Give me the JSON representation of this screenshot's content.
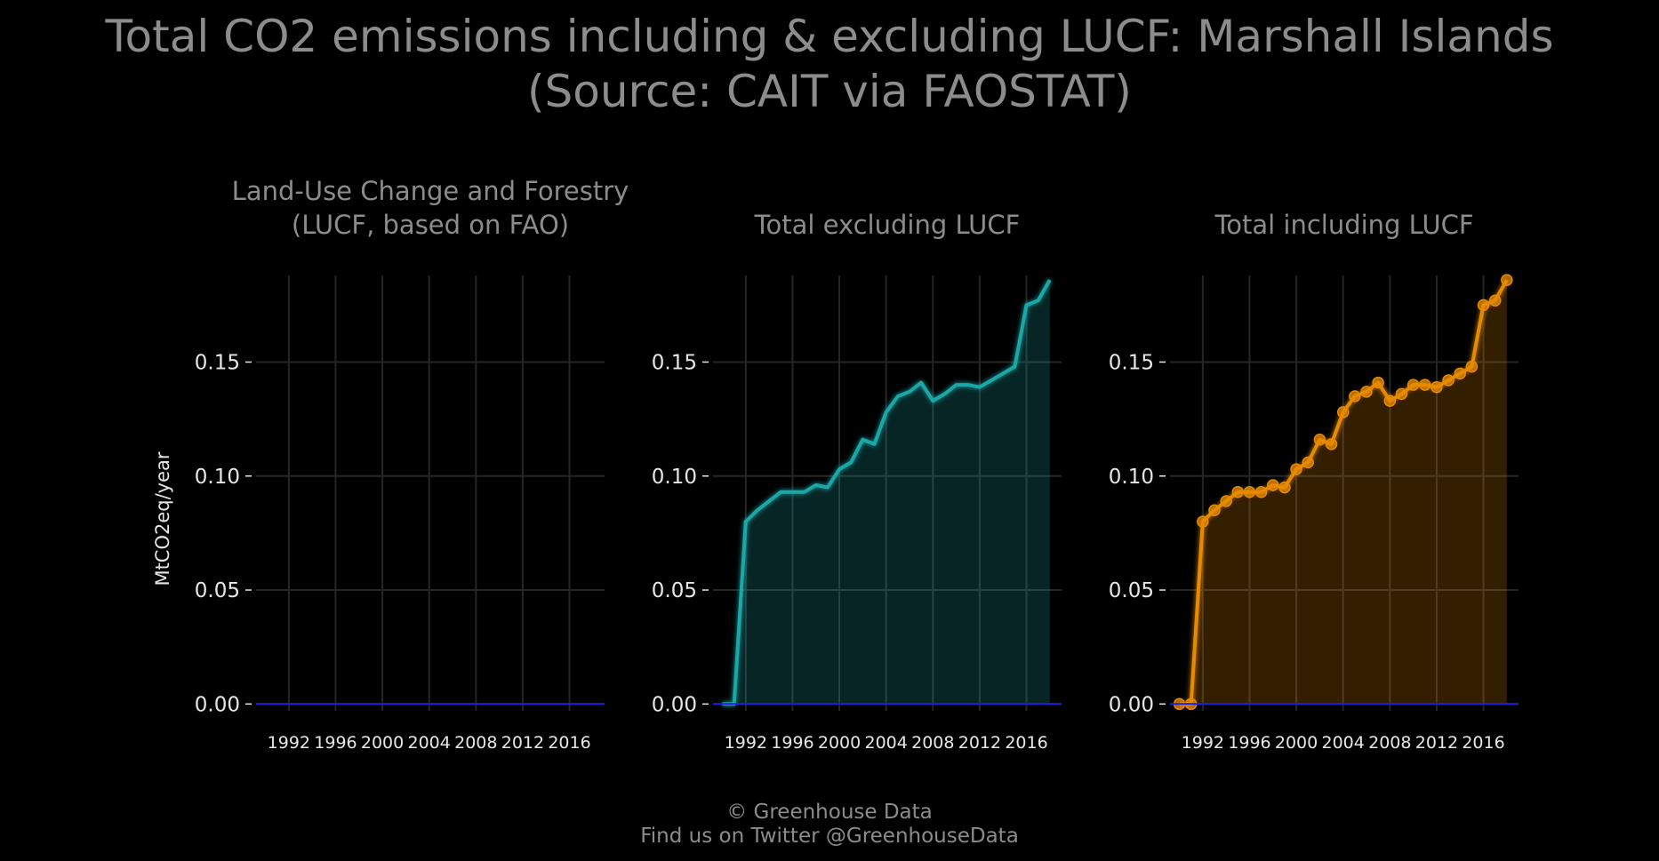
{
  "title_line1": "Total CO2 emissions including & excluding LUCF: Marshall Islands",
  "title_line2": "(Source: CAIT via FAOSTAT)",
  "ylabel": "MtCO2eq/year",
  "footer_line1": "© Greenhouse Data",
  "footer_line2": "Find us on Twitter @GreenhouseData",
  "colors": {
    "background": "#000000",
    "text_muted": "#8c8c8c",
    "tick_text": "#e6e6e6",
    "grid": "#262626",
    "zero_line": "#1f1fd6",
    "lucf": "#1f9e1f",
    "excl": "#1fa7a7",
    "incl": "#e68a00"
  },
  "chart_data": [
    {
      "type": "area",
      "title_lines": [
        "Land-Use Change and Forestry",
        "(LUCF, based on FAO)"
      ],
      "ylabel": "MtCO2eq/year",
      "ylim": [
        -0.003,
        0.188
      ],
      "yticks": [
        0.0,
        0.05,
        0.1,
        0.15
      ],
      "ytick_labels": [
        "0.00",
        "0.05",
        "0.10",
        "0.15"
      ],
      "xlim": [
        1989.2,
        2019.0
      ],
      "xticks": [
        1992,
        1996,
        2000,
        2004,
        2008,
        2012,
        2016
      ],
      "xtick_labels": [
        "1992",
        "1996",
        "2000",
        "2004",
        "2008",
        "2012",
        "2016"
      ],
      "grid": true,
      "markers": false,
      "color_key": "lucf",
      "series": [
        {
          "x": [
            1990,
            1991,
            1992,
            1993,
            1994,
            1995,
            1996,
            1997,
            1998,
            1999,
            2000,
            2001,
            2002,
            2003,
            2004,
            2005,
            2006,
            2007,
            2008,
            2009,
            2010,
            2011,
            2012,
            2013,
            2014,
            2015,
            2016,
            2017,
            2018
          ],
          "values": [
            0,
            0,
            0,
            0,
            0,
            0,
            0,
            0,
            0,
            0,
            0,
            0,
            0,
            0,
            0,
            0,
            0,
            0,
            0,
            0,
            0,
            0,
            0,
            0,
            0,
            0,
            0,
            0,
            0
          ]
        }
      ]
    },
    {
      "type": "area",
      "title_lines": [
        "Total excluding LUCF"
      ],
      "ylim": [
        -0.003,
        0.188
      ],
      "yticks": [
        0.0,
        0.05,
        0.1,
        0.15
      ],
      "ytick_labels": [
        "0.00",
        "0.05",
        "0.10",
        "0.15"
      ],
      "xlim": [
        1989.2,
        2019.0
      ],
      "xticks": [
        1992,
        1996,
        2000,
        2004,
        2008,
        2012,
        2016
      ],
      "xtick_labels": [
        "1992",
        "1996",
        "2000",
        "2004",
        "2008",
        "2012",
        "2016"
      ],
      "grid": true,
      "markers": false,
      "color_key": "excl",
      "series": [
        {
          "x": [
            1990,
            1991,
            1992,
            1993,
            1994,
            1995,
            1996,
            1997,
            1998,
            1999,
            2000,
            2001,
            2002,
            2003,
            2004,
            2005,
            2006,
            2007,
            2008,
            2009,
            2010,
            2011,
            2012,
            2013,
            2014,
            2015,
            2016,
            2017,
            2018
          ],
          "values": [
            0.0,
            0.0,
            0.08,
            0.085,
            0.089,
            0.093,
            0.093,
            0.093,
            0.096,
            0.095,
            0.103,
            0.106,
            0.116,
            0.114,
            0.128,
            0.135,
            0.137,
            0.141,
            0.133,
            0.136,
            0.14,
            0.14,
            0.139,
            0.142,
            0.145,
            0.148,
            0.175,
            0.177,
            0.186
          ]
        }
      ]
    },
    {
      "type": "area",
      "title_lines": [
        "Total including LUCF"
      ],
      "ylim": [
        -0.003,
        0.188
      ],
      "yticks": [
        0.0,
        0.05,
        0.1,
        0.15
      ],
      "ytick_labels": [
        "0.00",
        "0.05",
        "0.10",
        "0.15"
      ],
      "xlim": [
        1989.2,
        2019.0
      ],
      "xticks": [
        1992,
        1996,
        2000,
        2004,
        2008,
        2012,
        2016
      ],
      "xtick_labels": [
        "1992",
        "1996",
        "2000",
        "2004",
        "2008",
        "2012",
        "2016"
      ],
      "grid": true,
      "markers": true,
      "color_key": "incl",
      "series": [
        {
          "x": [
            1990,
            1991,
            1992,
            1993,
            1994,
            1995,
            1996,
            1997,
            1998,
            1999,
            2000,
            2001,
            2002,
            2003,
            2004,
            2005,
            2006,
            2007,
            2008,
            2009,
            2010,
            2011,
            2012,
            2013,
            2014,
            2015,
            2016,
            2017,
            2018
          ],
          "values": [
            0.0,
            0.0,
            0.08,
            0.085,
            0.089,
            0.093,
            0.093,
            0.093,
            0.096,
            0.095,
            0.103,
            0.106,
            0.116,
            0.114,
            0.128,
            0.135,
            0.137,
            0.141,
            0.133,
            0.136,
            0.14,
            0.14,
            0.139,
            0.142,
            0.145,
            0.148,
            0.175,
            0.177,
            0.186
          ]
        }
      ]
    }
  ]
}
